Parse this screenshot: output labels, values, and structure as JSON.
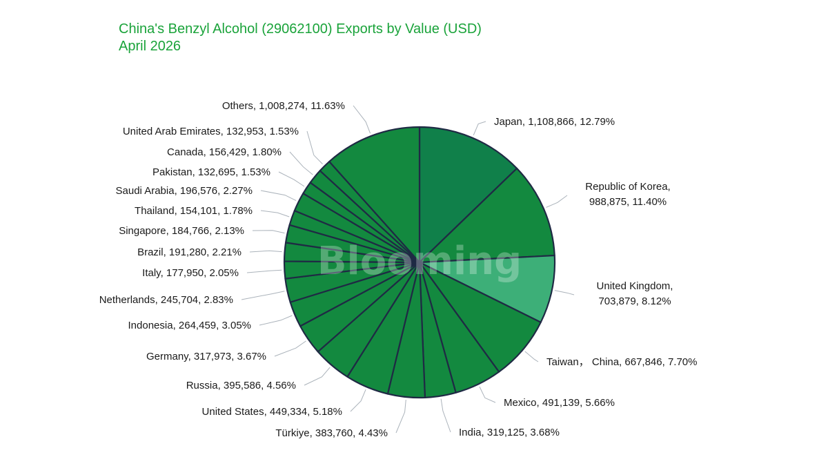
{
  "chart_data": {
    "type": "pie",
    "title": "China's Benzyl Alcohol (29062100) Exports by Value (USD)",
    "subtitle": "April 2026",
    "watermark": "Blooming",
    "colors": {
      "base": "#13893f",
      "dark": "#10804a",
      "light": "#3daf78",
      "stroke": "#1f2a44",
      "title": "#1aa33a"
    },
    "slices": [
      {
        "name": "Japan",
        "value": 1108866,
        "value_label": "1,108,866",
        "percent": "12.79%",
        "color": "#10804a"
      },
      {
        "name": "Republic of Korea",
        "value": 988875,
        "value_label": "988,875",
        "percent": "11.40%",
        "color": "#13893f"
      },
      {
        "name": "United Kingdom",
        "value": 703879,
        "value_label": "703,879",
        "percent": "8.12%",
        "color": "#3daf78"
      },
      {
        "name": "Taiwan， China",
        "value": 667846,
        "value_label": "667,846",
        "percent": "7.70%",
        "color": "#13893f"
      },
      {
        "name": "Mexico",
        "value": 491139,
        "value_label": "491,139",
        "percent": "5.66%",
        "color": "#13893f"
      },
      {
        "name": "India",
        "value": 319125,
        "value_label": "319,125",
        "percent": "3.68%",
        "color": "#13893f"
      },
      {
        "name": "Türkiye",
        "value": 383760,
        "value_label": "383,760",
        "percent": "4.43%",
        "color": "#13893f"
      },
      {
        "name": "United States",
        "value": 449334,
        "value_label": "449,334",
        "percent": "5.18%",
        "color": "#13893f"
      },
      {
        "name": "Russia",
        "value": 395586,
        "value_label": "395,586",
        "percent": "4.56%",
        "color": "#13893f"
      },
      {
        "name": "Germany",
        "value": 317973,
        "value_label": "317,973",
        "percent": "3.67%",
        "color": "#13893f"
      },
      {
        "name": "Indonesia",
        "value": 264459,
        "value_label": "264,459",
        "percent": "3.05%",
        "color": "#13893f"
      },
      {
        "name": "Netherlands",
        "value": 245704,
        "value_label": "245,704",
        "percent": "2.83%",
        "color": "#13893f"
      },
      {
        "name": "Italy",
        "value": 177950,
        "value_label": "177,950",
        "percent": "2.05%",
        "color": "#13893f"
      },
      {
        "name": "Brazil",
        "value": 191280,
        "value_label": "191,280",
        "percent": "2.21%",
        "color": "#13893f"
      },
      {
        "name": "Singapore",
        "value": 184766,
        "value_label": "184,766",
        "percent": "2.13%",
        "color": "#13893f"
      },
      {
        "name": "Thailand",
        "value": 154101,
        "value_label": "154,101",
        "percent": "1.78%",
        "color": "#13893f"
      },
      {
        "name": "Saudi Arabia",
        "value": 196576,
        "value_label": "196,576",
        "percent": "2.27%",
        "color": "#13893f"
      },
      {
        "name": "Pakistan",
        "value": 132695,
        "value_label": "132,695",
        "percent": "1.53%",
        "color": "#13893f"
      },
      {
        "name": "Canada",
        "value": 156429,
        "value_label": "156,429",
        "percent": "1.80%",
        "color": "#13893f"
      },
      {
        "name": "United Arab Emirates",
        "value": 132953,
        "value_label": "132,953",
        "percent": "1.53%",
        "color": "#13893f"
      },
      {
        "name": "Others",
        "value": 1008274,
        "value_label": "1,008,274",
        "percent": "11.63%",
        "color": "#13893f"
      }
    ]
  }
}
